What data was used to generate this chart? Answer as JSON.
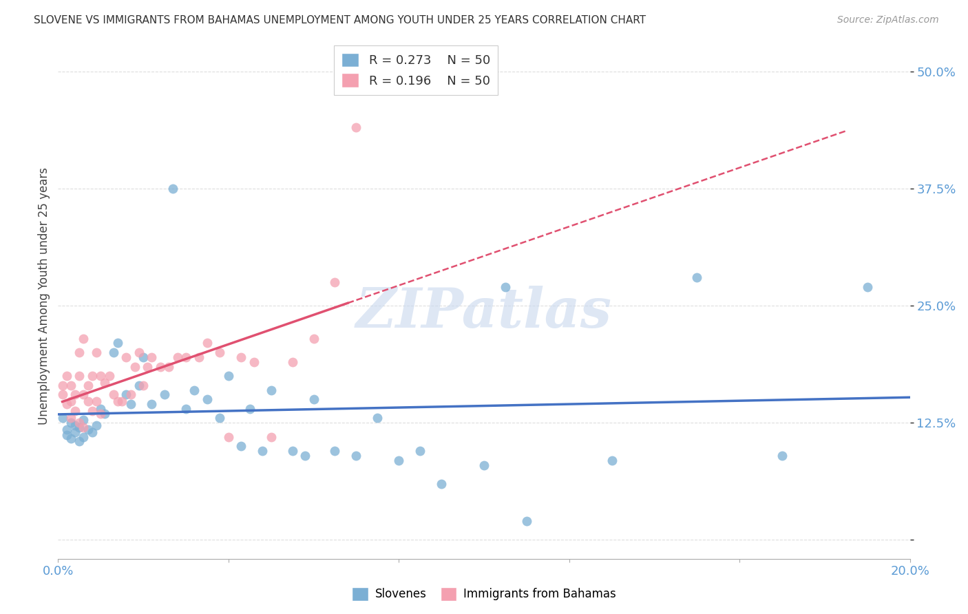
{
  "title": "SLOVENE VS IMMIGRANTS FROM BAHAMAS UNEMPLOYMENT AMONG YOUTH UNDER 25 YEARS CORRELATION CHART",
  "source": "Source: ZipAtlas.com",
  "ylabel": "Unemployment Among Youth under 25 years",
  "xlim": [
    0.0,
    0.2
  ],
  "ylim": [
    -0.02,
    0.54
  ],
  "xticks": [
    0.0,
    0.04,
    0.08,
    0.12,
    0.16,
    0.2
  ],
  "xtick_labels": [
    "0.0%",
    "",
    "",
    "",
    "",
    "20.0%"
  ],
  "yticks": [
    0.0,
    0.125,
    0.25,
    0.375,
    0.5
  ],
  "ytick_labels": [
    "",
    "12.5%",
    "25.0%",
    "37.5%",
    "50.0%"
  ],
  "blue_color": "#7bafd4",
  "pink_color": "#f4a0b0",
  "legend_R_blue": "0.273",
  "legend_N_blue": "50",
  "legend_R_pink": "0.196",
  "legend_N_pink": "50",
  "blue_scatter_x": [
    0.001,
    0.002,
    0.002,
    0.003,
    0.003,
    0.004,
    0.004,
    0.005,
    0.005,
    0.006,
    0.006,
    0.007,
    0.008,
    0.009,
    0.01,
    0.011,
    0.013,
    0.014,
    0.016,
    0.017,
    0.019,
    0.02,
    0.022,
    0.025,
    0.027,
    0.03,
    0.032,
    0.035,
    0.038,
    0.04,
    0.043,
    0.045,
    0.048,
    0.05,
    0.055,
    0.058,
    0.06,
    0.065,
    0.07,
    0.075,
    0.08,
    0.085,
    0.09,
    0.1,
    0.105,
    0.11,
    0.13,
    0.15,
    0.17,
    0.19
  ],
  "blue_scatter_y": [
    0.13,
    0.118,
    0.112,
    0.125,
    0.108,
    0.122,
    0.115,
    0.12,
    0.105,
    0.128,
    0.11,
    0.118,
    0.115,
    0.122,
    0.14,
    0.135,
    0.2,
    0.21,
    0.155,
    0.145,
    0.165,
    0.195,
    0.145,
    0.155,
    0.375,
    0.14,
    0.16,
    0.15,
    0.13,
    0.175,
    0.1,
    0.14,
    0.095,
    0.16,
    0.095,
    0.09,
    0.15,
    0.095,
    0.09,
    0.13,
    0.085,
    0.095,
    0.06,
    0.08,
    0.27,
    0.02,
    0.085,
    0.28,
    0.09,
    0.27
  ],
  "pink_scatter_x": [
    0.001,
    0.001,
    0.002,
    0.002,
    0.003,
    0.003,
    0.003,
    0.004,
    0.004,
    0.005,
    0.005,
    0.005,
    0.006,
    0.006,
    0.006,
    0.007,
    0.007,
    0.008,
    0.008,
    0.009,
    0.009,
    0.01,
    0.01,
    0.011,
    0.012,
    0.013,
    0.014,
    0.015,
    0.016,
    0.017,
    0.018,
    0.019,
    0.02,
    0.021,
    0.022,
    0.024,
    0.026,
    0.028,
    0.03,
    0.033,
    0.035,
    0.038,
    0.04,
    0.043,
    0.046,
    0.05,
    0.055,
    0.06,
    0.065,
    0.07
  ],
  "pink_scatter_y": [
    0.155,
    0.165,
    0.145,
    0.175,
    0.13,
    0.148,
    0.165,
    0.138,
    0.155,
    0.125,
    0.175,
    0.2,
    0.12,
    0.155,
    0.215,
    0.148,
    0.165,
    0.138,
    0.175,
    0.148,
    0.2,
    0.135,
    0.175,
    0.168,
    0.175,
    0.155,
    0.148,
    0.148,
    0.195,
    0.155,
    0.185,
    0.2,
    0.165,
    0.185,
    0.195,
    0.185,
    0.185,
    0.195,
    0.195,
    0.195,
    0.21,
    0.2,
    0.11,
    0.195,
    0.19,
    0.11,
    0.19,
    0.215,
    0.275,
    0.44
  ],
  "watermark": "ZIPatlas",
  "background_color": "#ffffff",
  "grid_color": "#dddddd"
}
